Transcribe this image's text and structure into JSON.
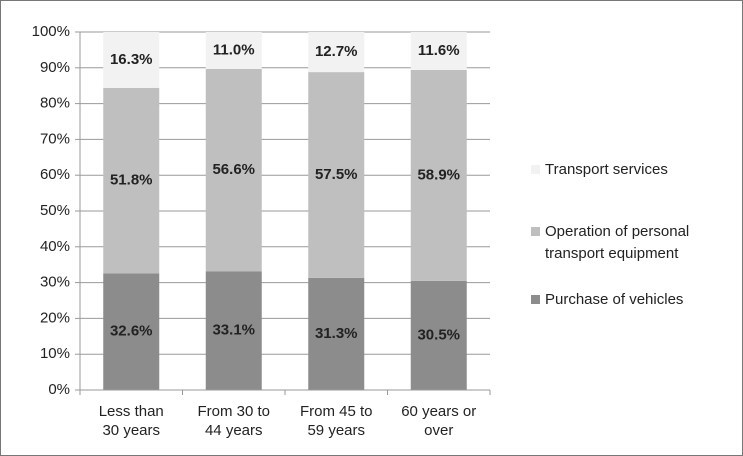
{
  "chart_data": {
    "type": "stacked_bar",
    "categories": [
      "Less than 30 years",
      "From 30 to 44 years",
      "From 45 to 59 years",
      "60 years or over"
    ],
    "series": [
      {
        "name": "Purchase of vehicles",
        "color": "#8c8c8c",
        "values": [
          32.6,
          33.1,
          31.3,
          30.5
        ],
        "value_labels": [
          "32.6%",
          "33.1%",
          "31.3%",
          "30.5%"
        ]
      },
      {
        "name": "Operation of personal transport equipment",
        "color": "#bfbfbf",
        "values": [
          51.8,
          56.6,
          57.5,
          58.9
        ],
        "value_labels": [
          "51.8%",
          "56.6%",
          "57.5%",
          "58.9%"
        ]
      },
      {
        "name": "Transport services",
        "color": "#f2f2f2",
        "values": [
          16.3,
          11.0,
          12.7,
          11.6
        ],
        "value_labels": [
          "16.3%",
          "11.0%",
          "12.7%",
          "11.6%"
        ]
      }
    ],
    "ylim": [
      0,
      100
    ],
    "yticks": [
      {
        "value": 0,
        "label": "0%"
      },
      {
        "value": 10,
        "label": "10%"
      },
      {
        "value": 20,
        "label": "20%"
      },
      {
        "value": 30,
        "label": "30%"
      },
      {
        "value": 40,
        "label": "40%"
      },
      {
        "value": 50,
        "label": "50%"
      },
      {
        "value": 60,
        "label": "60%"
      },
      {
        "value": 70,
        "label": "70%"
      },
      {
        "value": 80,
        "label": "80%"
      },
      {
        "value": 90,
        "label": "90%"
      },
      {
        "value": 100,
        "label": "100%"
      }
    ],
    "grid": true,
    "legend": "right"
  }
}
